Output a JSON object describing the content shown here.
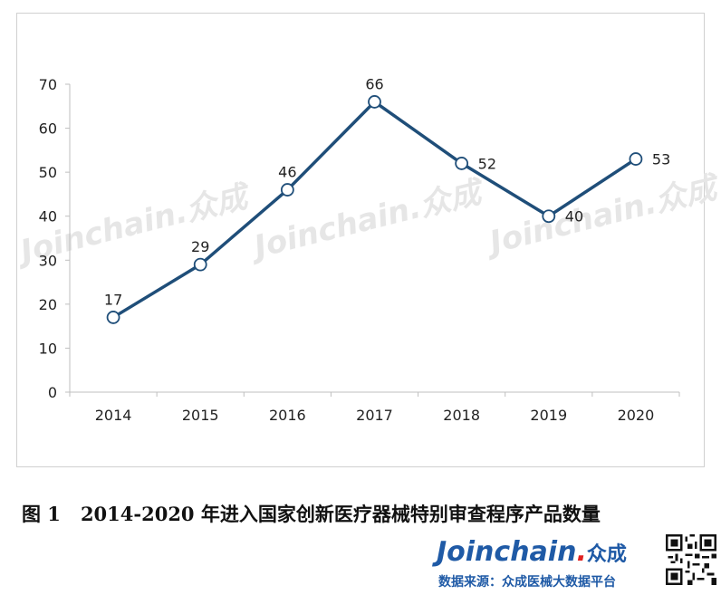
{
  "chart_data": {
    "type": "line",
    "categories": [
      "2014",
      "2015",
      "2016",
      "2017",
      "2018",
      "2019",
      "2020"
    ],
    "values": [
      17,
      29,
      46,
      66,
      52,
      40,
      53
    ],
    "ylim": [
      0,
      70
    ],
    "yticks": [
      "0",
      "10",
      "20",
      "30",
      "40",
      "50",
      "60",
      "70"
    ],
    "grid": false,
    "line_color": "#1f4e79",
    "marker_fill": "#ffffff"
  },
  "watermark": "Joinchain.众成",
  "caption": {
    "fig_label": "图 1",
    "text": "2014-2020 年进入国家创新医疗器械特别审查程序产品数量"
  },
  "brand": {
    "name": "Joinchain",
    "dot": ".",
    "cn": "众成",
    "color": "#1f5aa6"
  },
  "source": "数据来源：众成医械大数据平台",
  "qr_icon": "qr-code-icon"
}
